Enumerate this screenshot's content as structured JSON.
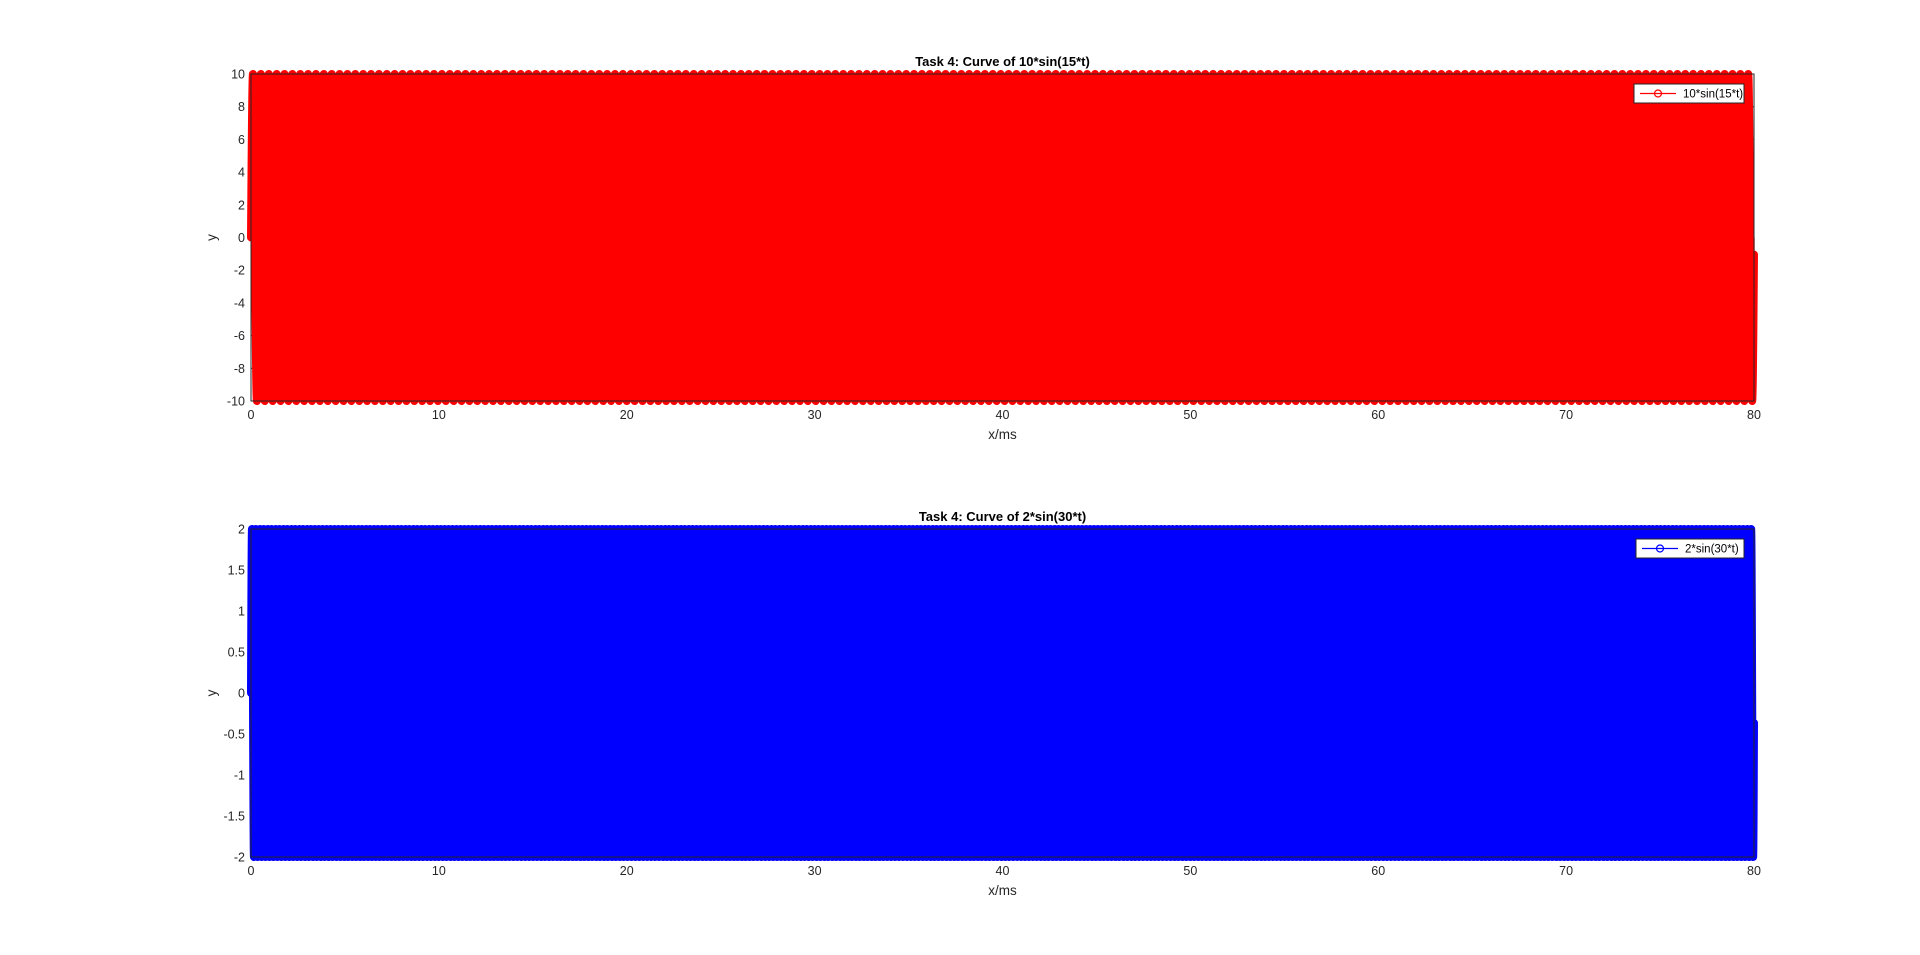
{
  "chart_data": [
    {
      "type": "line",
      "title": "Task 4: Curve of 10*sin(15*t)",
      "xlabel": "x/ms",
      "ylabel": "y",
      "xlim": [
        0,
        80
      ],
      "ylim": [
        -10,
        10
      ],
      "xticks": [
        0,
        10,
        20,
        30,
        40,
        50,
        60,
        70,
        80
      ],
      "yticks": [
        -10,
        -8,
        -6,
        -4,
        -2,
        0,
        2,
        4,
        6,
        8,
        10
      ],
      "grid": false,
      "legend_position": "top-right",
      "series": [
        {
          "name": "10*sin(15*t)",
          "color": "#ff0000",
          "marker": "circle",
          "function": "10*sin(15*t)",
          "amplitude": 10,
          "angular_frequency": 15,
          "x_range": [
            0,
            80
          ],
          "stem_to_zero": true
        }
      ]
    },
    {
      "type": "line",
      "title": "Task 4: Curve of 2*sin(30*t)",
      "xlabel": "x/ms",
      "ylabel": "y",
      "xlim": [
        0,
        80
      ],
      "ylim": [
        -2,
        2
      ],
      "xticks": [
        0,
        10,
        20,
        30,
        40,
        50,
        60,
        70,
        80
      ],
      "yticks": [
        -2,
        -1.5,
        -1,
        -0.5,
        0,
        0.5,
        1,
        1.5,
        2
      ],
      "grid": false,
      "legend_position": "top-right",
      "series": [
        {
          "name": "2*sin(30*t)",
          "color": "#0000ff",
          "marker": "circle",
          "function": "2*sin(30*t)",
          "amplitude": 2,
          "angular_frequency": 30,
          "x_range": [
            0,
            80
          ],
          "stem_to_zero": true
        }
      ]
    }
  ]
}
